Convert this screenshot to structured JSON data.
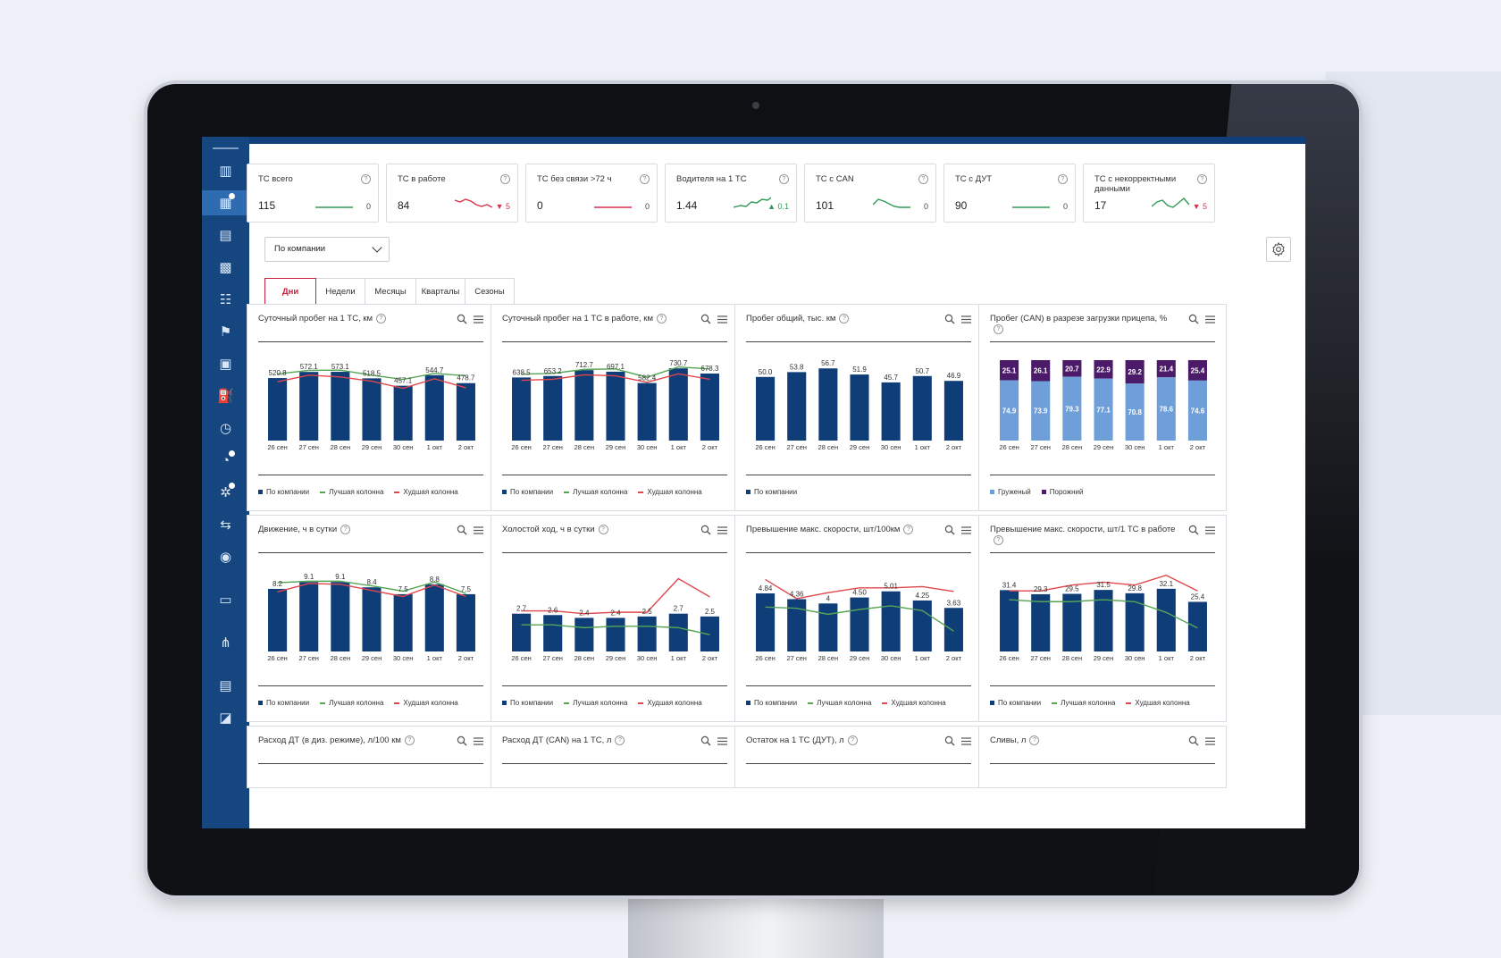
{
  "kpis": [
    {
      "label": "ТС всего",
      "value": "115",
      "delta": "0",
      "trend": "flat",
      "color": "#2e9a55"
    },
    {
      "label": "ТС в работе",
      "value": "84",
      "delta": "▼ 5",
      "trend": "down",
      "color": "#d8334a"
    },
    {
      "label": "ТС без связи >72 ч",
      "value": "0",
      "delta": "0",
      "trend": "flat",
      "color": "#d8334a"
    },
    {
      "label": "Водителя на 1 ТС",
      "value": "1.44",
      "delta": "▲ 0.1",
      "trend": "up",
      "color": "#2e9a55"
    },
    {
      "label": "ТС с CAN",
      "value": "101",
      "delta": "0",
      "trend": "wave",
      "color": "#2e9a55"
    },
    {
      "label": "ТС с ДУТ",
      "value": "90",
      "delta": "0",
      "trend": "flat",
      "color": "#2e9a55"
    },
    {
      "label": "ТС с некорректными данными",
      "value": "17",
      "delta": "▼ 5",
      "trend": "wave2",
      "color": "#2e9a55"
    }
  ],
  "filter": {
    "selected": "По компании"
  },
  "tabs": [
    "Дни",
    "Недели",
    "Месяцы",
    "Кварталы",
    "Сезоны"
  ],
  "active_tab": "Дни",
  "sidebar": {
    "icons": [
      "chart-icon",
      "dashboard-icon",
      "document-icon",
      "report-icon",
      "sliders-icon",
      "route-icon",
      "monitor-icon",
      "fuel-icon",
      "clock-icon",
      "alert-icon",
      "settings-icon",
      "folder-icon",
      "tire-icon",
      "chat-icon",
      "hierarchy-icon",
      "table-icon",
      "support-icon"
    ],
    "active": 1,
    "badges": [
      1,
      9,
      10
    ]
  },
  "colors": {
    "bar": "#0e3d78",
    "best": "#55a555",
    "worst": "#e0474c",
    "loaded": "#6f9fd8",
    "empty": "#4b1a69"
  },
  "legends": {
    "company": "По компании",
    "best": "Лучшая колонна",
    "worst": "Худшая колонна",
    "loaded": "Груженый",
    "empty": "Порожний"
  },
  "chart_data": [
    {
      "title": "Суточный пробег на 1 ТС, км",
      "type": "bar",
      "categories": [
        "26 сен",
        "27 сен",
        "28 сен",
        "29 сен",
        "30 сен",
        "1 окт",
        "2 окт"
      ],
      "labels": [
        "520.8",
        "572.1",
        "573.1",
        "518.5",
        "457.1",
        "544.7",
        "478.7"
      ],
      "series": [
        {
          "name": "По компании",
          "values": [
            520.8,
            572.1,
            573.1,
            518.5,
            457.1,
            544.7,
            478.7
          ]
        },
        {
          "name": "Лучшая колонна",
          "values": [
            555,
            585,
            587,
            545,
            510,
            560,
            540
          ]
        },
        {
          "name": "Худшая колонна",
          "values": [
            490,
            545,
            530,
            495,
            435,
            515,
            440
          ]
        }
      ],
      "ylim": [
        0,
        700
      ]
    },
    {
      "title": "Суточный пробег на 1 ТС в работе, км",
      "type": "bar",
      "categories": [
        "26 сен",
        "27 сен",
        "28 сен",
        "29 сен",
        "30 сен",
        "1 окт",
        "2 окт"
      ],
      "labels": [
        "638.5",
        "653.2",
        "712.7",
        "697.1",
        "582.4",
        "730.7",
        "678.3"
      ],
      "series": [
        {
          "name": "По компании",
          "values": [
            638.5,
            653.2,
            712.7,
            697.1,
            582.4,
            730.7,
            678.3
          ]
        },
        {
          "name": "Лучшая колонна",
          "values": [
            672,
            680,
            720,
            725,
            640,
            745,
            725
          ]
        },
        {
          "name": "Худшая колонна",
          "values": [
            610,
            620,
            665,
            655,
            590,
            675,
            620
          ]
        }
      ],
      "ylim": [
        0,
        850
      ]
    },
    {
      "title": "Пробег общий, тыс. км",
      "type": "bar",
      "categories": [
        "26 сен",
        "27 сен",
        "28 сен",
        "29 сен",
        "30 сен",
        "1 окт",
        "2 окт"
      ],
      "labels": [
        "50.0",
        "53.8",
        "56.7",
        "51.9",
        "45.7",
        "50.7",
        "46.9"
      ],
      "series": [
        {
          "name": "По компании",
          "values": [
            50.0,
            53.8,
            56.7,
            51.9,
            45.7,
            50.7,
            46.9
          ]
        }
      ],
      "ylim": [
        0,
        66
      ]
    },
    {
      "title": "Пробег (CAN) в разрезе загрузки прицепа, %",
      "type": "stacked",
      "categories": [
        "26 сен",
        "27 сен",
        "28 сен",
        "29 сен",
        "30 сен",
        "1 окт",
        "2 окт"
      ],
      "series": [
        {
          "name": "Груженый",
          "values": [
            74.9,
            73.9,
            79.3,
            77.1,
            70.8,
            78.6,
            74.6
          ]
        },
        {
          "name": "Порожний",
          "values": [
            25.1,
            26.1,
            20.7,
            22.9,
            29.2,
            21.4,
            25.4
          ]
        }
      ],
      "ylim": [
        0,
        100
      ]
    },
    {
      "title": "Движение, ч в сутки",
      "type": "bar",
      "categories": [
        "26 сен",
        "27 сен",
        "28 сен",
        "29 сен",
        "30 сен",
        "1 окт",
        "2 окт"
      ],
      "labels": [
        "8.2",
        "9.1",
        "9.1",
        "8.4",
        "7.5",
        "8.8",
        "7.5"
      ],
      "series": [
        {
          "name": "По компании",
          "values": [
            8.2,
            9.1,
            9.1,
            8.4,
            7.5,
            8.8,
            7.5
          ]
        },
        {
          "name": "Лучшая колонна",
          "values": [
            9.0,
            9.2,
            9.2,
            8.6,
            7.9,
            9.1,
            7.6
          ]
        },
        {
          "name": "Худшая колонна",
          "values": [
            7.8,
            8.9,
            8.8,
            8.0,
            7.2,
            8.7,
            7.2
          ]
        }
      ],
      "ylim": [
        0,
        11
      ]
    },
    {
      "title": "Холостой ход, ч в сутки",
      "type": "bar",
      "categories": [
        "26 сен",
        "27 сен",
        "28 сен",
        "29 сен",
        "30 сен",
        "1 окт",
        "2 окт"
      ],
      "labels": [
        "2.7",
        "2.6",
        "2.4",
        "2.4",
        "2.5",
        "2.7",
        "2.5"
      ],
      "series": [
        {
          "name": "По компании",
          "values": [
            2.7,
            2.6,
            2.4,
            2.4,
            2.5,
            2.7,
            2.5
          ]
        },
        {
          "name": "Лучшая колонна",
          "values": [
            1.9,
            1.9,
            1.7,
            1.8,
            1.8,
            1.7,
            1.2
          ]
        },
        {
          "name": "Худшая колонна",
          "values": [
            2.9,
            2.9,
            2.7,
            2.8,
            2.8,
            5.2,
            3.9
          ]
        }
      ],
      "ylim": [
        0,
        6
      ]
    },
    {
      "title": "Превышение макс. скорости, шт/100км",
      "type": "bar",
      "categories": [
        "26 сен",
        "27 сен",
        "28 сен",
        "29 сен",
        "30 сен",
        "1 окт",
        "2 окт"
      ],
      "labels": [
        "4.84",
        "4.36",
        "4",
        "4.50",
        "5.01",
        "4.25",
        "3.63"
      ],
      "series": [
        {
          "name": "По компании",
          "values": [
            4.84,
            4.36,
            4.0,
            4.5,
            5.01,
            4.25,
            3.63
          ]
        },
        {
          "name": "Лучшая колонна",
          "values": [
            3.7,
            3.6,
            3.1,
            3.5,
            3.8,
            3.4,
            1.7
          ]
        },
        {
          "name": "Худшая колонна",
          "values": [
            6.0,
            4.4,
            4.9,
            5.3,
            5.3,
            5.4,
            5.0
          ]
        }
      ],
      "ylim": [
        0,
        7
      ]
    },
    {
      "title": "Превышение макс. скорости, шт/1 ТС в работе",
      "type": "bar",
      "categories": [
        "26 сен",
        "27 сен",
        "28 сен",
        "29 сен",
        "30 сен",
        "1 окт",
        "2 окт"
      ],
      "labels": [
        "31.4",
        "29.3",
        "29.5",
        "31.5",
        "29.8",
        "32.1",
        "25.4"
      ],
      "series": [
        {
          "name": "По компании",
          "values": [
            31.4,
            29.3,
            29.5,
            31.5,
            29.8,
            32.1,
            25.4
          ]
        },
        {
          "name": "Лучшая колонна",
          "values": [
            26.5,
            25.5,
            25.5,
            26.5,
            25.5,
            20.0,
            12.0
          ]
        },
        {
          "name": "Худшая колонна",
          "values": [
            31.0,
            31.0,
            34.0,
            35.5,
            34.0,
            39.0,
            31.0
          ]
        }
      ],
      "ylim": [
        0,
        43
      ]
    }
  ],
  "bottom_cards": [
    "Расход ДТ (в диз. режиме), л/100 км",
    "Расход ДТ (CAN) на 1 ТС, л",
    "Остаток на 1 ТС (ДУТ), л",
    "Сливы, л"
  ]
}
